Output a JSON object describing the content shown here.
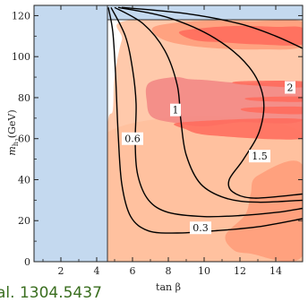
{
  "chart_data": {
    "type": "contour",
    "title": "",
    "xlabel": "tan β",
    "ylabel_main": "m",
    "ylabel_sub": "h",
    "ylabel_subsub": "2",
    "ylabel_unit": "(GeV)",
    "xlim": [
      0.5,
      15.5
    ],
    "ylim": [
      0,
      125
    ],
    "xticks": [
      2,
      4,
      6,
      8,
      10,
      12,
      14
    ],
    "yticks": [
      0,
      20,
      40,
      60,
      80,
      100,
      120
    ],
    "colors": {
      "excluded_blue": "#c4d9ef",
      "region_light": "#ffbf9c",
      "region_mid": "#ff9b78",
      "region_strong": "#ff6a5a",
      "region_pink": "#f28583",
      "contour": "#000000",
      "citation": "#3a6e1f"
    },
    "excluded_regions": [
      {
        "name": "low tan beta",
        "x": [
          0.5,
          4.6
        ],
        "y": [
          0,
          125
        ]
      },
      {
        "name": "top band",
        "x": [
          4.6,
          15.5
        ],
        "y": [
          118,
          125
        ]
      }
    ],
    "contour_levels": [
      {
        "label": "0.3",
        "label_at": [
          9.8,
          16.5
        ],
        "points": [
          [
            4.65,
            124
          ],
          [
            4.9,
            112
          ],
          [
            5.05,
            92
          ],
          [
            5.2,
            62
          ],
          [
            5.4,
            38
          ],
          [
            5.9,
            22
          ],
          [
            6.9,
            15
          ],
          [
            8.5,
            14
          ],
          [
            10.5,
            15
          ],
          [
            13,
            17
          ],
          [
            15.5,
            21
          ]
        ]
      },
      {
        "label": "0.6",
        "label_at": [
          6.0,
          60
        ],
        "points": [
          [
            4.8,
            124
          ],
          [
            5.6,
            110
          ],
          [
            6.0,
            94
          ],
          [
            6.2,
            77
          ],
          [
            6.15,
            58
          ],
          [
            6.3,
            42
          ],
          [
            6.9,
            30
          ],
          [
            8,
            24
          ],
          [
            10,
            22
          ],
          [
            12,
            22.5
          ],
          [
            14,
            24
          ],
          [
            15.5,
            26
          ]
        ]
      },
      {
        "label": "1",
        "label_at": [
          8.4,
          74
        ],
        "points": [
          [
            5.0,
            124
          ],
          [
            6.6,
            116
          ],
          [
            7.8,
            103
          ],
          [
            8.5,
            86
          ],
          [
            8.7,
            69
          ],
          [
            9.0,
            52
          ],
          [
            9.8,
            38
          ],
          [
            11.2,
            31
          ],
          [
            13,
            29
          ],
          [
            15.5,
            30
          ]
        ]
      },
      {
        "label": "1.5",
        "label_at": [
          13.1,
          51.5
        ],
        "points": [
          [
            5.2,
            124
          ],
          [
            8,
            119
          ],
          [
            10.6,
            109
          ],
          [
            12.5,
            95
          ],
          [
            13.3,
            80
          ],
          [
            13.1,
            64
          ],
          [
            12.2,
            50
          ],
          [
            11.4,
            40
          ],
          [
            11.6,
            34
          ],
          [
            12.8,
            31
          ],
          [
            15.5,
            33
          ]
        ]
      },
      {
        "label": "2",
        "label_at": [
          14.8,
          85
        ],
        "points": [
          [
            5.4,
            124
          ],
          [
            9,
            121
          ],
          [
            12,
            116
          ],
          [
            14,
            110
          ],
          [
            15.5,
            104
          ]
        ]
      }
    ],
    "shaded_regions": [
      {
        "color": "region_light",
        "points": [
          [
            4.6,
            0
          ],
          [
            15.5,
            0
          ],
          [
            15.5,
            118
          ],
          [
            6.0,
            118
          ],
          [
            5.4,
            108
          ],
          [
            5.0,
            90
          ],
          [
            4.9,
            74
          ],
          [
            4.6,
            64
          ]
        ]
      },
      {
        "color": "region_light",
        "points": [
          [
            4.6,
            0
          ],
          [
            15.5,
            0
          ],
          [
            15.5,
            63
          ],
          [
            4.6,
            63
          ]
        ]
      },
      {
        "color": "region_mid",
        "points": [
          [
            7.2,
            114.5
          ],
          [
            9.8,
            117.5
          ],
          [
            12.5,
            117.3
          ],
          [
            15.5,
            117
          ],
          [
            15.5,
            105
          ],
          [
            13,
            103.5
          ],
          [
            10,
            104.5
          ],
          [
            7.8,
            108
          ]
        ]
      },
      {
        "color": "region_strong",
        "points": [
          [
            8.6,
            112
          ],
          [
            10,
            114
          ],
          [
            12,
            115
          ],
          [
            14,
            114.5
          ],
          [
            15.5,
            114
          ],
          [
            15.5,
            106
          ],
          [
            13,
            106
          ],
          [
            11,
            107
          ],
          [
            9.5,
            108
          ]
        ]
      },
      {
        "color": "region_pink",
        "points": [
          [
            6.9,
            87
          ],
          [
            8.3,
            90
          ],
          [
            9.2,
            89
          ],
          [
            10.2,
            88.5
          ],
          [
            12.3,
            87
          ],
          [
            15.5,
            87
          ],
          [
            15.5,
            69
          ],
          [
            12,
            68
          ],
          [
            10,
            66
          ],
          [
            8.5,
            67.5
          ],
          [
            7.1,
            70.5
          ],
          [
            6.8,
            78
          ]
        ]
      },
      {
        "color": "region_strong",
        "points": [
          [
            8.8,
            68
          ],
          [
            15.5,
            69.5
          ],
          [
            15.5,
            60
          ],
          [
            10.5,
            61.5
          ],
          [
            9,
            64.5
          ]
        ]
      },
      {
        "color": "region_strong",
        "points": [
          [
            12,
            88
          ],
          [
            15.5,
            88
          ],
          [
            15.5,
            85
          ],
          [
            12,
            86.5
          ]
        ]
      },
      {
        "color": "region_strong",
        "points": [
          [
            12.5,
            80
          ],
          [
            15.5,
            80.5
          ],
          [
            15.5,
            78
          ],
          [
            12.8,
            78.5
          ]
        ]
      },
      {
        "color": "region_strong",
        "points": [
          [
            12.3,
            75
          ],
          [
            15.5,
            75.5
          ],
          [
            15.5,
            72
          ],
          [
            12.6,
            73
          ]
        ]
      },
      {
        "color": "region_mid",
        "points": [
          [
            13,
            42
          ],
          [
            15.5,
            47
          ],
          [
            15.5,
            3
          ],
          [
            12.5,
            4
          ],
          [
            11.6,
            6
          ],
          [
            11.2,
            13
          ],
          [
            12.3,
            23
          ],
          [
            12.6,
            33
          ]
        ]
      }
    ],
    "grid": false,
    "legend": "none"
  },
  "citation_text": "al. 1304.5437"
}
